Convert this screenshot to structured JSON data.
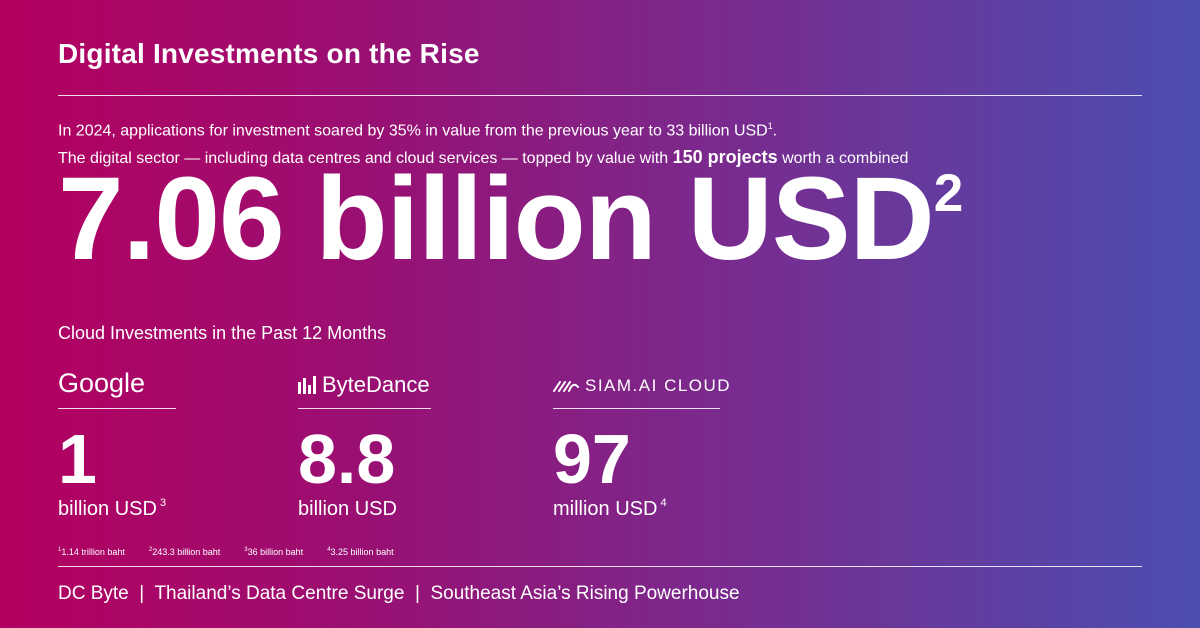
{
  "title": "Digital Investments on the Rise",
  "intro": {
    "line1": "In 2024, applications for investment soared by 35% in value from the previous year to 33 billion USD",
    "line1_sup": "1",
    "line1_end": ".",
    "line2_pre": "The digital sector — including data centres and cloud services — topped by value with ",
    "line2_bold": "150 projects",
    "line2_post": " worth a combined"
  },
  "headline": {
    "value": "7.06 billion USD",
    "sup": "2"
  },
  "subheading": "Cloud Investments in the Past 12 Months",
  "companies": [
    {
      "name": "Google",
      "value": "1",
      "unit": "billion USD",
      "sup": "3"
    },
    {
      "name": "ByteDance",
      "value": "8.8",
      "unit": "billion USD",
      "sup": ""
    },
    {
      "name": "SIAM.AI CLOUD",
      "value": "97",
      "unit": "million USD",
      "sup": "4"
    }
  ],
  "footnotes": [
    {
      "sup": "1",
      "text": "1.14 trillion baht"
    },
    {
      "sup": "2",
      "text": "243.3 billion baht"
    },
    {
      "sup": "3",
      "text": "36 billion baht"
    },
    {
      "sup": "4",
      "text": "3.25 billion baht"
    }
  ],
  "footer": "DC Byte  |  Thailand’s Data Centre Surge  |  Southeast Asia’s Rising Powerhouse",
  "colors": {
    "gradient_start": "#b30060",
    "gradient_end": "#4b4eb0",
    "text": "#ffffff"
  },
  "icons": {
    "bytedance": "bytedance-logo-icon",
    "siam": "siam-ai-cloud-logo-icon"
  }
}
